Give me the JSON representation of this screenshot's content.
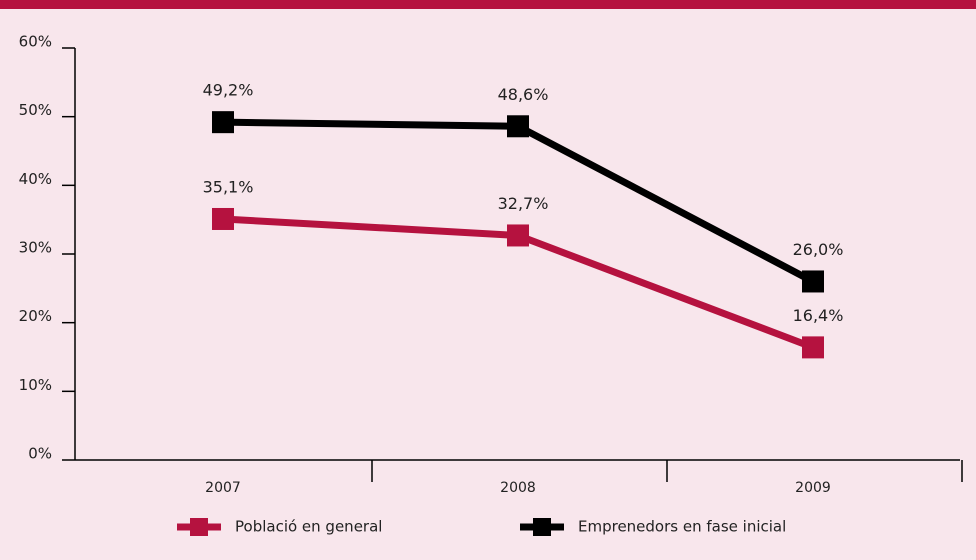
{
  "chart_data": {
    "type": "line",
    "categories": [
      "2007",
      "2008",
      "2009"
    ],
    "series": [
      {
        "name": "Població en general",
        "color": "#b5123f",
        "values": [
          35.1,
          32.7,
          16.4
        ],
        "value_labels": [
          "35,1%",
          "32,7%",
          "16,4%"
        ]
      },
      {
        "name": "Emprenedors en fase inicial",
        "color": "#000000",
        "values": [
          49.2,
          48.6,
          26.0
        ],
        "value_labels": [
          "49,2%",
          "48,6%",
          "26,0%"
        ]
      }
    ],
    "ylim": [
      0,
      60
    ],
    "yticks": [
      {
        "value": 0,
        "label": "0%"
      },
      {
        "value": 10,
        "label": "10%"
      },
      {
        "value": 20,
        "label": "20%"
      },
      {
        "value": 30,
        "label": "30%"
      },
      {
        "value": 40,
        "label": "40%"
      },
      {
        "value": 50,
        "label": "50%"
      },
      {
        "value": 60,
        "label": "60%"
      }
    ],
    "grid": false,
    "legend": "bottom"
  }
}
